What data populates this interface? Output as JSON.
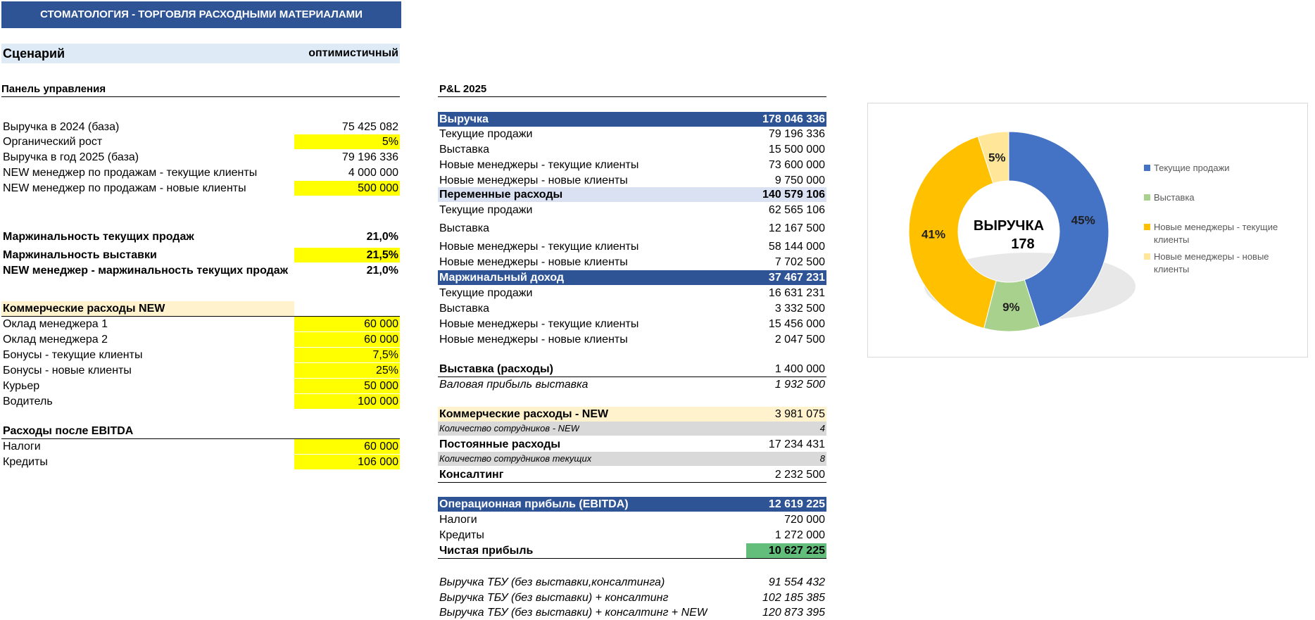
{
  "title": "СТОМАТОЛОГИЯ - ТОРГОВЛЯ РАСХОДНЫМИ МАТЕРИАЛАМИ",
  "scenario": {
    "label": "Сценарий",
    "value": "оптимистичный"
  },
  "control_panel": {
    "heading": "Панель управления",
    "rows": [
      {
        "label": "Выручка в 2024 (база)",
        "value": "75 425 082"
      },
      {
        "label": "Органический рост",
        "value": "5%"
      },
      {
        "label": "Выручка в год 2025 (база)",
        "value": "79 196 336"
      },
      {
        "label": "NEW менеджер по продажам - текущие клиенты",
        "value": "4 000 000"
      },
      {
        "label": "NEW менеджер по продажам - новые клиенты",
        "value": "500 000"
      }
    ],
    "margins": [
      {
        "label": "Маржинальность текущих продаж",
        "value": "21,0%"
      },
      {
        "label": "Маржинальность выставки",
        "value": "21,5%"
      },
      {
        "label": "NEW менеджер - маржинальность текущих продаж",
        "value": "21,0%"
      }
    ],
    "commercial_heading": "Коммерческие расходы NEW",
    "commercial": [
      {
        "label": "Оклад менеджера 1",
        "value": "60 000"
      },
      {
        "label": "Оклад менеджера 2",
        "value": "60 000"
      },
      {
        "label": "Бонусы - текущие клиенты",
        "value": "7,5%"
      },
      {
        "label": "Бонусы - новые клиенты",
        "value": "25%"
      },
      {
        "label": "Курьер",
        "value": "50 000"
      },
      {
        "label": "Водитель",
        "value": "100 000"
      }
    ],
    "after_ebitda_heading": "Расходы после EBITDA",
    "after_ebitda": [
      {
        "label": "Налоги",
        "value": "60 000"
      },
      {
        "label": "Кредиты",
        "value": "106 000"
      }
    ]
  },
  "pl": {
    "heading": "P&L 2025",
    "revenue": {
      "label": "Выручка",
      "value": "178 046 336"
    },
    "revenue_rows": [
      {
        "label": "Текущие продажи",
        "value": "79 196 336"
      },
      {
        "label": "Выставка",
        "value": "15 500 000"
      },
      {
        "label": "Новые менеджеры - текущие клиенты",
        "value": "73 600 000"
      },
      {
        "label": "Новые менеджеры - новые клиенты",
        "value": "9 750 000"
      }
    ],
    "variable": {
      "label": "Переменные расходы",
      "value": "140 579 106"
    },
    "variable_rows": [
      {
        "label": "Текущие продажи",
        "value": "62 565 106"
      },
      {
        "label": "Выставка",
        "value": "12 167 500"
      },
      {
        "label": "Новые менеджеры - текущие клиенты",
        "value": "58 144 000"
      },
      {
        "label": "Новые менеджеры - новые клиенты",
        "value": "7 702 500"
      }
    ],
    "margin": {
      "label": "Маржинальный доход",
      "value": "37 467 231"
    },
    "margin_rows": [
      {
        "label": "Текущие продажи",
        "value": "16 631 231"
      },
      {
        "label": "Выставка",
        "value": "3 332 500"
      },
      {
        "label": "Новые менеджеры - текущие клиенты",
        "value": "15 456 000"
      },
      {
        "label": "Новые менеджеры - новые клиенты",
        "value": "2 047 500"
      }
    ],
    "expo_costs": {
      "label": "Выставка (расходы)",
      "value": "1 400 000"
    },
    "expo_gross": {
      "label": "Валовая прибыль выставка",
      "value": "1 932 500"
    },
    "commercial": {
      "label": "Коммерческие расходы - NEW",
      "value": "3 981 075"
    },
    "staff_new": {
      "label": "Количество сотрудников - NEW",
      "value": "4"
    },
    "fixed": {
      "label": "Постоянные расходы",
      "value": "17 234 431"
    },
    "staff_current": {
      "label": "Количество сотрудников текущих",
      "value": "8"
    },
    "consulting": {
      "label": "Консалтинг",
      "value": "2 232 500"
    },
    "ebitda": {
      "label": "Операционная прибыль (EBITDA)",
      "value": "12 619 225"
    },
    "taxes": {
      "label": "Налоги",
      "value": "720 000"
    },
    "credits": {
      "label": "Кредиты",
      "value": "1 272 000"
    },
    "net": {
      "label": "Чистая прибыль",
      "value": "10 627 225"
    },
    "tbu": [
      {
        "label": "Выручка ТБУ (без выставки,консалтинга)",
        "value": "91 554 432"
      },
      {
        "label": "Выручка ТБУ (без выставки) + консалтинг",
        "value": "102 185 385"
      },
      {
        "label": "Выручка ТБУ (без выставки) + консалтинг + NEW",
        "value": "120 873 395"
      }
    ]
  },
  "colors": {
    "header_blue": "#2f5496",
    "input_yellow": "#ffff00",
    "cream": "#fff2cc",
    "light_blue": "#d9e1f2",
    "green": "#63be7b"
  },
  "chart_data": {
    "type": "pie",
    "center_label": "ВЫРУЧКА",
    "center_value": "178",
    "legend_position": "right",
    "slices": [
      {
        "name": "Текущие продажи",
        "value": 45,
        "label": "45%",
        "color": "#4472c4"
      },
      {
        "name": "Выставка",
        "value": 9,
        "label": "9%",
        "color": "#a9d18e"
      },
      {
        "name": "Новые менеджеры - текущие клиенты",
        "value": 41,
        "label": "41%",
        "color": "#ffc000"
      },
      {
        "name": "Новые менеджеры - новые клиенты",
        "value": 5,
        "label": "5%",
        "color": "#ffe699"
      }
    ]
  }
}
